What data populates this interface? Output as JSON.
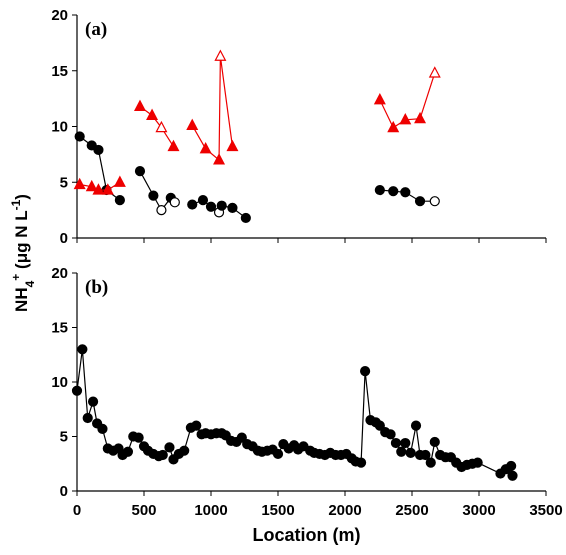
{
  "y_label": [
    {
      "text": "NH"
    },
    {
      "text": "4",
      "shift": "sub"
    },
    {
      "text": "+",
      "shift": "super"
    },
    {
      "text": " (μg N L"
    },
    {
      "text": "-1",
      "shift": "super"
    },
    {
      "text": ")"
    }
  ],
  "chart_data": [
    {
      "type": "line",
      "title": "(a)",
      "xlim": [
        0,
        3500
      ],
      "xticks": [
        0,
        500,
        1000,
        1500,
        2000,
        2500,
        3000,
        3500
      ],
      "ylim": [
        0,
        20
      ],
      "yticks": [
        0,
        5,
        10,
        15,
        20
      ],
      "xtick_labels": false,
      "series": [
        {
          "color": "#000000",
          "marker": "circle",
          "x": [
            20,
            110,
            160,
            220,
            320
          ],
          "values": [
            9.1,
            8.3,
            7.9,
            4.3,
            3.4
          ],
          "open": [
            false,
            false,
            false,
            false,
            false
          ]
        },
        {
          "color": "#000000",
          "marker": "circle",
          "x": [
            470,
            570,
            630,
            700,
            730
          ],
          "values": [
            6.0,
            3.8,
            2.5,
            3.6,
            3.2
          ],
          "open": [
            false,
            false,
            true,
            false,
            true
          ]
        },
        {
          "color": "#000000",
          "marker": "circle",
          "x": [
            860,
            940,
            1000,
            1060,
            1080,
            1160,
            1260
          ],
          "values": [
            3.0,
            3.4,
            2.8,
            2.3,
            2.9,
            2.7,
            1.8
          ],
          "open": [
            false,
            false,
            false,
            true,
            false,
            false,
            false
          ]
        },
        {
          "color": "#000000",
          "marker": "circle",
          "x": [
            2260,
            2360,
            2450,
            2560,
            2670
          ],
          "values": [
            4.3,
            4.2,
            4.1,
            3.3,
            3.3
          ],
          "open": [
            false,
            false,
            false,
            false,
            true
          ]
        },
        {
          "color": "#ee0000",
          "marker": "triangle",
          "x": [
            20,
            110,
            160,
            230,
            320
          ],
          "values": [
            4.8,
            4.6,
            4.3,
            4.3,
            5.0
          ],
          "open": [
            false,
            false,
            false,
            false,
            false
          ]
        },
        {
          "color": "#ee0000",
          "marker": "triangle",
          "x": [
            470,
            560,
            630,
            720
          ],
          "values": [
            11.8,
            11.0,
            9.9,
            8.2
          ],
          "open": [
            false,
            false,
            true,
            false
          ]
        },
        {
          "color": "#ee0000",
          "marker": "triangle",
          "x": [
            860,
            960,
            1060,
            1070,
            1160
          ],
          "values": [
            10.1,
            8.0,
            7.0,
            16.3,
            8.2
          ],
          "open": [
            false,
            false,
            false,
            true,
            false
          ]
        },
        {
          "color": "#ee0000",
          "marker": "triangle",
          "x": [
            2260,
            2360,
            2450,
            2560,
            2670
          ],
          "values": [
            12.4,
            9.9,
            10.6,
            10.7,
            14.8
          ],
          "open": [
            false,
            false,
            false,
            false,
            true
          ]
        }
      ]
    },
    {
      "type": "line",
      "title": "(b)",
      "x_label": "Location (m)",
      "xlim": [
        0,
        3500
      ],
      "xticks": [
        0,
        500,
        1000,
        1500,
        2000,
        2500,
        3000,
        3500
      ],
      "ylim": [
        0,
        20
      ],
      "yticks": [
        0,
        5,
        10,
        15,
        20
      ],
      "xtick_labels": true,
      "series": [
        {
          "color": "#000000",
          "marker": "circle",
          "x": [
            0,
            40,
            80,
            120,
            150,
            190,
            230,
            270,
            310,
            340,
            380,
            420,
            460,
            500,
            530,
            570,
            610,
            640,
            690,
            720,
            760,
            800,
            850,
            890,
            930,
            960,
            1000,
            1040,
            1080,
            1110,
            1150,
            1190,
            1230,
            1270,
            1310,
            1350,
            1380,
            1420,
            1460,
            1500,
            1540,
            1580,
            1620,
            1650,
            1690,
            1740,
            1770,
            1810,
            1850,
            1890,
            1930,
            1970,
            2010,
            2050,
            2080,
            2120,
            2150,
            2190,
            2230,
            2260,
            2300,
            2340,
            2380,
            2420,
            2450,
            2490,
            2530,
            2560,
            2600,
            2640,
            2670,
            2710,
            2750,
            2790,
            2830,
            2870,
            2910,
            2950,
            2990,
            3160,
            3200,
            3240,
            3250
          ],
          "values": [
            9.2,
            13.0,
            6.7,
            8.2,
            6.2,
            5.7,
            3.9,
            3.7,
            3.9,
            3.3,
            3.6,
            5.0,
            4.9,
            4.1,
            3.7,
            3.4,
            3.2,
            3.3,
            4.0,
            2.9,
            3.4,
            3.7,
            5.8,
            6.0,
            5.2,
            5.3,
            5.2,
            5.3,
            5.3,
            5.1,
            4.6,
            4.5,
            4.9,
            4.3,
            4.1,
            3.7,
            3.6,
            3.7,
            3.8,
            3.4,
            4.3,
            3.9,
            4.2,
            3.8,
            4.1,
            3.7,
            3.5,
            3.4,
            3.3,
            3.5,
            3.3,
            3.3,
            3.4,
            3.0,
            2.7,
            2.6,
            11.0,
            6.5,
            6.3,
            6.0,
            5.4,
            5.2,
            4.4,
            3.6,
            4.4,
            3.5,
            6.0,
            3.3,
            3.3,
            2.6,
            4.5,
            3.3,
            3.1,
            3.1,
            2.6,
            2.2,
            2.4,
            2.5,
            2.6,
            1.6,
            2.0,
            2.3,
            1.4
          ]
        }
      ]
    }
  ]
}
